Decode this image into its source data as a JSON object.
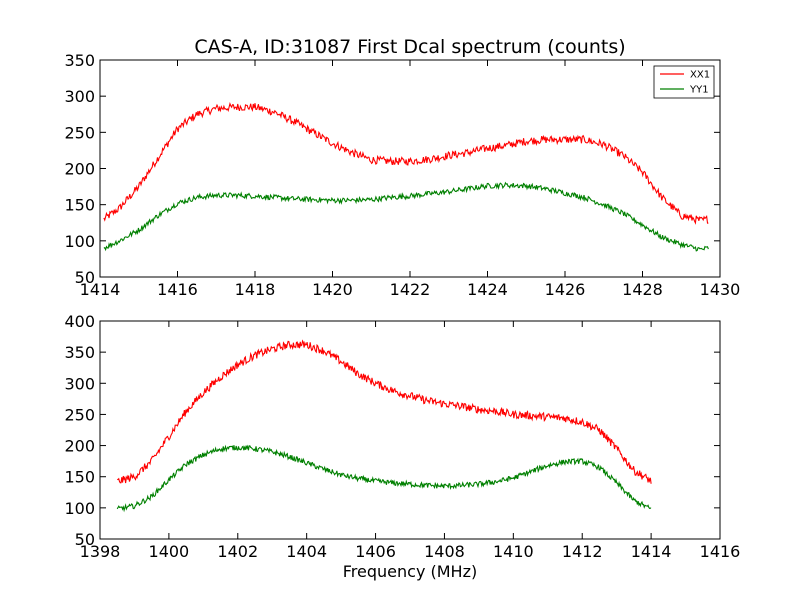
{
  "chart_data": [
    {
      "type": "line",
      "title": "CAS-A, ID:31087 First Dcal spectrum (counts)",
      "xlabel": "",
      "ylabel": "",
      "xlim": [
        1414,
        1430
      ],
      "ylim": [
        50,
        350
      ],
      "xticks": [
        1414,
        1416,
        1418,
        1420,
        1422,
        1424,
        1426,
        1428,
        1430
      ],
      "yticks": [
        50,
        100,
        150,
        200,
        250,
        300,
        350
      ],
      "grid": false,
      "legend": "top-right",
      "series": [
        {
          "name": "XX1",
          "color": "#ff0000",
          "x": [
            1414.1,
            1414.5,
            1415.0,
            1415.5,
            1416.0,
            1416.5,
            1417.0,
            1417.5,
            1418.0,
            1418.5,
            1419.0,
            1419.5,
            1420.0,
            1420.5,
            1421.0,
            1421.5,
            1422.0,
            1422.5,
            1423.0,
            1423.5,
            1424.0,
            1424.5,
            1425.0,
            1425.5,
            1426.0,
            1426.5,
            1427.0,
            1427.5,
            1428.0,
            1428.5,
            1429.0,
            1429.5,
            1429.7
          ],
          "y": [
            130,
            145,
            175,
            215,
            255,
            275,
            283,
            285,
            285,
            278,
            265,
            250,
            235,
            222,
            212,
            210,
            210,
            213,
            218,
            222,
            228,
            232,
            238,
            240,
            240,
            240,
            233,
            218,
            195,
            160,
            135,
            128,
            130
          ]
        },
        {
          "name": "YY1",
          "color": "#008000",
          "x": [
            1414.1,
            1414.5,
            1415.0,
            1415.5,
            1416.0,
            1416.5,
            1417.0,
            1417.5,
            1418.0,
            1418.5,
            1419.0,
            1419.5,
            1420.0,
            1420.5,
            1421.0,
            1421.5,
            1422.0,
            1422.5,
            1423.0,
            1423.5,
            1424.0,
            1424.5,
            1425.0,
            1425.5,
            1426.0,
            1426.5,
            1427.0,
            1427.5,
            1428.0,
            1428.5,
            1429.0,
            1429.5,
            1429.7
          ],
          "y": [
            90,
            100,
            115,
            135,
            152,
            160,
            163,
            163,
            162,
            160,
            158,
            157,
            156,
            156,
            157,
            160,
            162,
            165,
            168,
            172,
            176,
            177,
            176,
            172,
            166,
            160,
            150,
            138,
            122,
            105,
            95,
            88,
            90
          ]
        }
      ]
    },
    {
      "type": "line",
      "title": "",
      "xlabel": "Frequency (MHz)",
      "ylabel": "",
      "xlim": [
        1398,
        1416
      ],
      "ylim": [
        50,
        400
      ],
      "xticks": [
        1398,
        1400,
        1402,
        1404,
        1406,
        1408,
        1410,
        1412,
        1414,
        1416
      ],
      "yticks": [
        50,
        100,
        150,
        200,
        250,
        300,
        350,
        400
      ],
      "grid": false,
      "series": [
        {
          "color": "#ff0000",
          "x": [
            1398.5,
            1399.0,
            1399.5,
            1400.0,
            1400.5,
            1401.0,
            1401.5,
            1402.0,
            1402.5,
            1403.0,
            1403.5,
            1404.0,
            1404.5,
            1405.0,
            1405.5,
            1406.0,
            1406.5,
            1407.0,
            1407.5,
            1408.0,
            1408.5,
            1409.0,
            1409.5,
            1410.0,
            1410.5,
            1411.0,
            1411.5,
            1412.0,
            1412.5,
            1413.0,
            1413.5,
            1414.0
          ],
          "y": [
            142,
            150,
            175,
            215,
            255,
            285,
            310,
            330,
            345,
            355,
            362,
            362,
            352,
            335,
            315,
            300,
            288,
            280,
            272,
            267,
            263,
            258,
            255,
            250,
            248,
            246,
            244,
            238,
            225,
            195,
            160,
            143
          ]
        },
        {
          "color": "#008000",
          "x": [
            1398.5,
            1399.0,
            1399.5,
            1400.0,
            1400.5,
            1401.0,
            1401.5,
            1402.0,
            1402.5,
            1403.0,
            1403.5,
            1404.0,
            1404.5,
            1405.0,
            1405.5,
            1406.0,
            1406.5,
            1407.0,
            1407.5,
            1408.0,
            1408.5,
            1409.0,
            1409.5,
            1410.0,
            1410.5,
            1411.0,
            1411.5,
            1412.0,
            1412.5,
            1413.0,
            1413.5,
            1414.0
          ],
          "y": [
            98,
            103,
            118,
            145,
            170,
            185,
            195,
            197,
            195,
            190,
            182,
            172,
            162,
            153,
            147,
            143,
            140,
            138,
            136,
            135,
            136,
            138,
            142,
            148,
            158,
            168,
            174,
            175,
            165,
            140,
            112,
            98
          ]
        }
      ]
    }
  ]
}
